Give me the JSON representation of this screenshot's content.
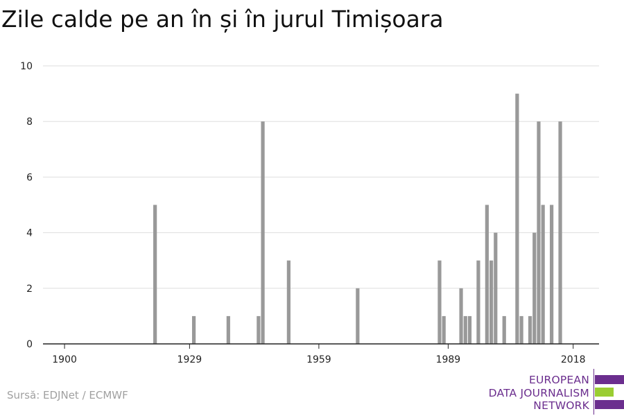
{
  "chart_data": {
    "type": "bar",
    "title": "Zile calde pe an în și în jurul Timișoara",
    "xlabel": "",
    "ylabel": "",
    "xlim": [
      1895,
      2024
    ],
    "ylim": [
      0,
      10
    ],
    "x_ticks": [
      1900,
      1929,
      1959,
      1989,
      2018
    ],
    "y_ticks": [
      0,
      2,
      4,
      6,
      8,
      10
    ],
    "grid": true,
    "bar_color": "#999999",
    "x": [
      1921,
      1930,
      1938,
      1945,
      1946,
      1952,
      1968,
      1987,
      1988,
      1992,
      1993,
      1994,
      1996,
      1998,
      1999,
      2000,
      2002,
      2005,
      2006,
      2008,
      2009,
      2010,
      2011,
      2013,
      2015
    ],
    "values": [
      5,
      1,
      1,
      1,
      8,
      3,
      2,
      3,
      1,
      2,
      1,
      1,
      3,
      5,
      3,
      4,
      1,
      9,
      1,
      1,
      4,
      8,
      5,
      5,
      8
    ]
  },
  "source": "Sursă: EDJNet / ECMWF",
  "logo": {
    "lines": [
      "EUROPEAN",
      "DATA JOURNALISM",
      "NETWORK"
    ],
    "colors": {
      "purple": "#6b2e8e",
      "green": "#9acd32"
    }
  }
}
